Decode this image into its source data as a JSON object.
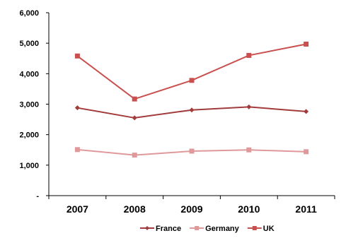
{
  "chart_data": {
    "type": "line",
    "title": "",
    "xlabel": "",
    "ylabel": "",
    "categories": [
      "2007",
      "2008",
      "2009",
      "2010",
      "2011"
    ],
    "ylim": [
      0,
      6000
    ],
    "yticks": [
      0,
      1000,
      2000,
      3000,
      4000,
      5000,
      6000
    ],
    "ytick_labels": [
      "-",
      "1,000",
      "2,000",
      "3,000",
      "4,000",
      "5,000",
      "6,000"
    ],
    "grid": false,
    "legend_position": "bottom",
    "series": [
      {
        "name": "France",
        "marker": "diamond",
        "color": "#a23b3b",
        "values": [
          2880,
          2550,
          2810,
          2910,
          2760
        ]
      },
      {
        "name": "Germany",
        "marker": "square",
        "color": "#e0999b",
        "values": [
          1510,
          1330,
          1460,
          1500,
          1440
        ]
      },
      {
        "name": "UK",
        "marker": "square",
        "color": "#c9504f",
        "values": [
          4580,
          3170,
          3780,
          4600,
          4970
        ]
      }
    ]
  }
}
